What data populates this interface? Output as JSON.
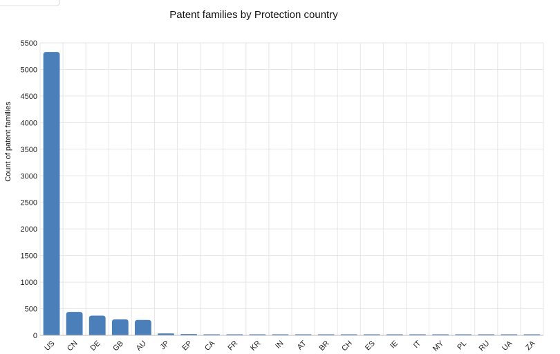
{
  "chart_data": {
    "type": "bar",
    "title": "Patent families by Protection country",
    "xlabel": "",
    "ylabel": "Count of patent families",
    "ylim": [
      0,
      5500
    ],
    "yticks": [
      0,
      500,
      1000,
      1500,
      2000,
      2500,
      3000,
      3500,
      4000,
      4500,
      5000,
      5500
    ],
    "grid": true,
    "bar_color": "#4a7fba",
    "categories": [
      "US",
      "CN",
      "DE",
      "GB",
      "AU",
      "JP",
      "EP",
      "CA",
      "FR",
      "KR",
      "IN",
      "AT",
      "BR",
      "CH",
      "ES",
      "IE",
      "IT",
      "MY",
      "PL",
      "RU",
      "UA",
      "ZA"
    ],
    "values": [
      5330,
      440,
      370,
      300,
      290,
      35,
      25,
      15,
      12,
      10,
      7,
      5,
      5,
      4,
      4,
      3,
      3,
      3,
      3,
      3,
      2,
      2
    ]
  }
}
